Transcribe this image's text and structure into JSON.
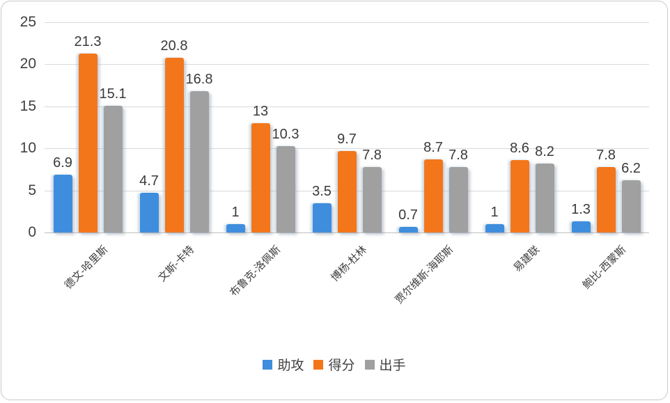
{
  "chart_data": {
    "type": "bar",
    "title": "",
    "categories": [
      "德文-哈里斯",
      "文斯-卡特",
      "布鲁克-洛佩斯",
      "博杨-杜林",
      "贾尔维斯-海耶斯",
      "易建联",
      "鲍比-西蒙斯"
    ],
    "series": [
      {
        "name": "助攻",
        "color": "#3E8EDD",
        "values": [
          6.9,
          4.7,
          1,
          3.5,
          0.7,
          1,
          1.3
        ],
        "labels": [
          "6.9",
          "4.7",
          "1",
          "3.5",
          "0.7",
          "1",
          "1.3"
        ]
      },
      {
        "name": "得分",
        "color": "#F3761B",
        "values": [
          21.3,
          20.8,
          13,
          9.7,
          8.7,
          8.6,
          7.8
        ],
        "labels": [
          "21.3",
          "20.8",
          "13",
          "9.7",
          "8.7",
          "8.6",
          "7.8"
        ]
      },
      {
        "name": "出手",
        "color": "#A0A0A0",
        "values": [
          15.1,
          16.8,
          10.3,
          7.8,
          7.8,
          8.2,
          6.2
        ],
        "labels": [
          "15.1",
          "16.8",
          "10.3",
          "7.8",
          "7.8",
          "8.2",
          "6.2"
        ]
      }
    ],
    "y_ticks": [
      0,
      5,
      10,
      15,
      20,
      25
    ],
    "ylim": [
      0,
      25
    ],
    "xlabel": "",
    "ylabel": "",
    "grid": true,
    "legend_position": "bottom"
  },
  "colors": {
    "gridline": "#d9d9d9",
    "axis_line": "#bfbfbf",
    "text": "#404040",
    "card_border": "#c9c9cd",
    "background": "#ffffff"
  }
}
